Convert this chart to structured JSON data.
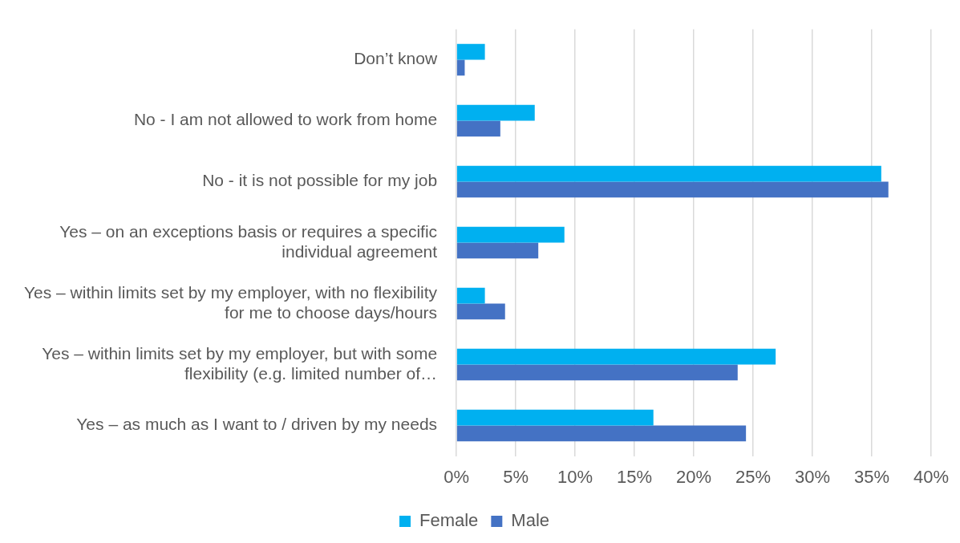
{
  "chart_data": {
    "type": "bar",
    "orientation": "horizontal",
    "categories": [
      "Don’t know",
      "No - I am not allowed to work from home",
      "No - it is not possible for my job",
      "Yes – on an exceptions basis or requires a specific individual agreement",
      "Yes – within limits set by my employer, with no flexibility for me to choose days/hours",
      "Yes – within limits set by my employer, but with some flexibility (e.g. limited number of…",
      "Yes – as much as I want to / driven by my needs"
    ],
    "series": [
      {
        "name": "Female",
        "color": "#00b0f0",
        "values": [
          2.4,
          6.6,
          35.8,
          9.1,
          2.4,
          26.9,
          16.6
        ]
      },
      {
        "name": "Male",
        "color": "#4472c4",
        "values": [
          0.7,
          3.7,
          36.4,
          6.9,
          4.1,
          23.7,
          24.4
        ]
      }
    ],
    "xlim": [
      0,
      40
    ],
    "xticks": [
      {
        "value": 0,
        "label": "0%"
      },
      {
        "value": 5,
        "label": "5%"
      },
      {
        "value": 10,
        "label": "10%"
      },
      {
        "value": 15,
        "label": "15%"
      },
      {
        "value": 20,
        "label": "20%"
      },
      {
        "value": 25,
        "label": "25%"
      },
      {
        "value": 30,
        "label": "30%"
      },
      {
        "value": 35,
        "label": "35%"
      },
      {
        "value": 40,
        "label": "40%"
      }
    ],
    "grid": "x",
    "legend": "bottom"
  }
}
